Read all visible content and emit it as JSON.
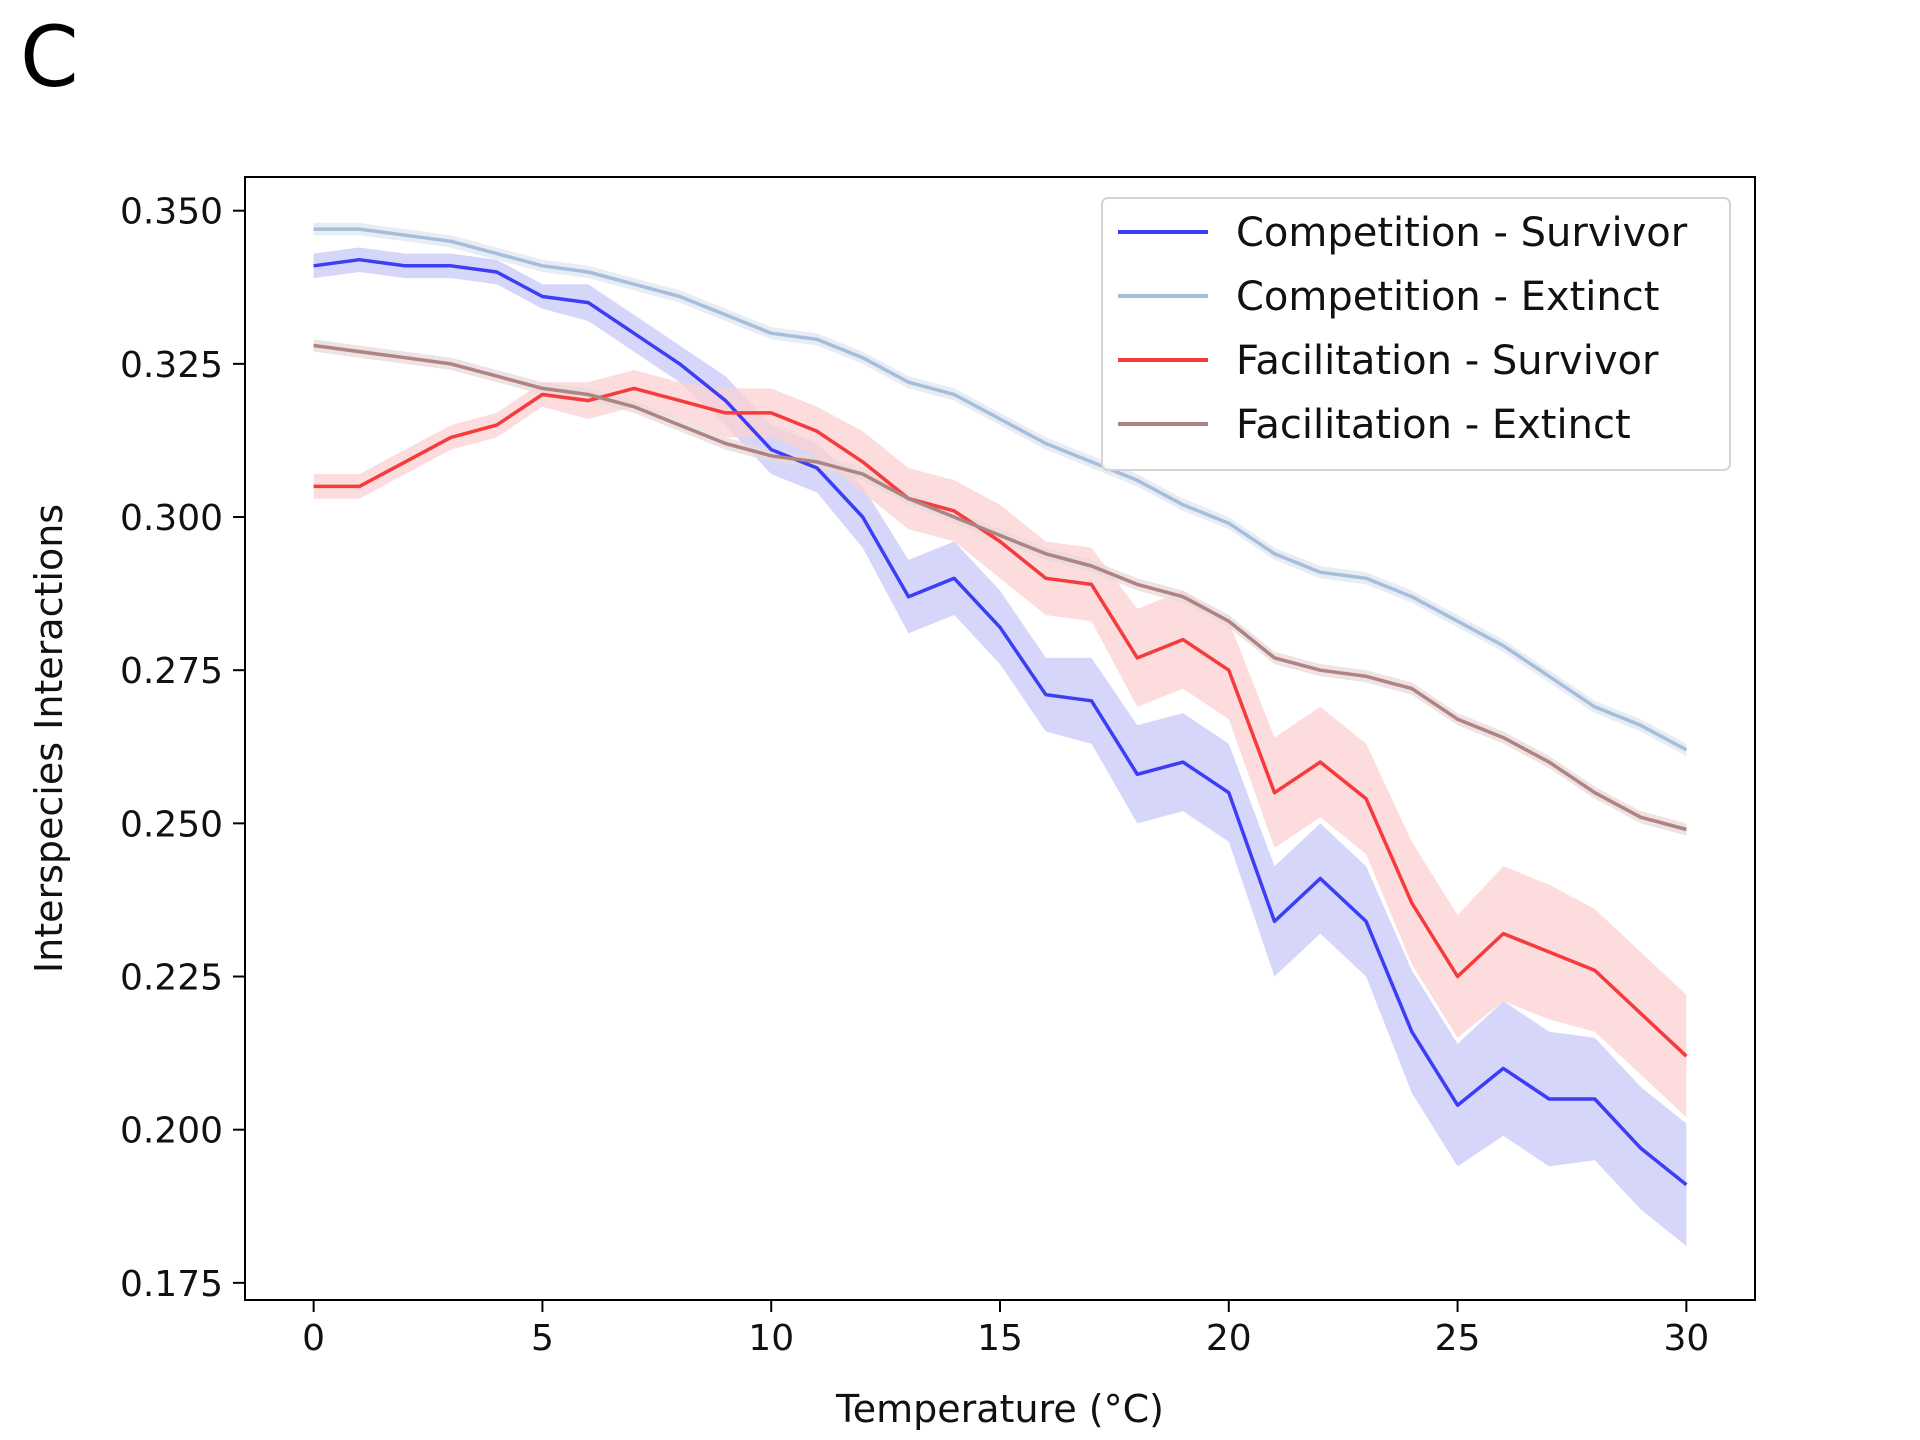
{
  "panel_label": "C",
  "chart_data": {
    "type": "line",
    "title": "",
    "xlabel": "Temperature (°C)",
    "ylabel": "Interspecies Interactions",
    "xlim": [
      -1.5,
      31.5
    ],
    "ylim": [
      0.1722,
      0.3555
    ],
    "xticks": [
      0,
      5,
      10,
      15,
      20,
      25,
      30
    ],
    "yticks": [
      0.175,
      0.2,
      0.225,
      0.25,
      0.275,
      0.3,
      0.325,
      0.35
    ],
    "ytick_labels": [
      "0.175",
      "0.200",
      "0.225",
      "0.250",
      "0.275",
      "0.300",
      "0.325",
      "0.350"
    ],
    "xtick_labels": [
      "0",
      "5",
      "10",
      "15",
      "20",
      "25",
      "30"
    ],
    "grid": false,
    "legend_position": "top-right",
    "x": [
      0,
      1,
      2,
      3,
      4,
      5,
      6,
      7,
      8,
      9,
      10,
      11,
      12,
      13,
      14,
      15,
      16,
      17,
      18,
      19,
      20,
      21,
      22,
      23,
      24,
      25,
      26,
      27,
      28,
      29,
      30
    ],
    "series": [
      {
        "name": "Competition - Survivor",
        "color": "#3d3df5",
        "band_color": "#c8c8f8",
        "values": [
          0.341,
          0.342,
          0.341,
          0.341,
          0.34,
          0.336,
          0.335,
          0.33,
          0.325,
          0.319,
          0.311,
          0.308,
          0.3,
          0.287,
          0.29,
          0.282,
          0.271,
          0.27,
          0.258,
          0.26,
          0.255,
          0.234,
          0.241,
          0.234,
          0.216,
          0.204,
          0.21,
          0.205,
          0.205,
          0.197,
          0.191
        ],
        "err": [
          0.002,
          0.002,
          0.002,
          0.002,
          0.002,
          0.002,
          0.003,
          0.003,
          0.003,
          0.004,
          0.004,
          0.004,
          0.005,
          0.006,
          0.006,
          0.006,
          0.006,
          0.007,
          0.008,
          0.008,
          0.008,
          0.009,
          0.009,
          0.009,
          0.01,
          0.01,
          0.011,
          0.011,
          0.01,
          0.01,
          0.01
        ]
      },
      {
        "name": "Competition - Extinct",
        "color": "#a7bedb",
        "band_color": "#dfe7f1",
        "values": [
          0.347,
          0.347,
          0.346,
          0.345,
          0.343,
          0.341,
          0.34,
          0.338,
          0.336,
          0.333,
          0.33,
          0.329,
          0.326,
          0.322,
          0.32,
          0.316,
          0.312,
          0.309,
          0.306,
          0.302,
          0.299,
          0.294,
          0.291,
          0.29,
          0.287,
          0.283,
          0.279,
          0.274,
          0.269,
          0.266,
          0.262
        ],
        "err": [
          0.001,
          0.001,
          0.001,
          0.001,
          0.001,
          0.001,
          0.001,
          0.001,
          0.001,
          0.001,
          0.001,
          0.001,
          0.001,
          0.001,
          0.001,
          0.001,
          0.001,
          0.001,
          0.001,
          0.001,
          0.001,
          0.001,
          0.001,
          0.001,
          0.001,
          0.001,
          0.001,
          0.001,
          0.001,
          0.001,
          0.001
        ]
      },
      {
        "name": "Facilitation - Survivor",
        "color": "#f53b3b",
        "band_color": "#fbd0d0",
        "values": [
          0.305,
          0.305,
          0.309,
          0.313,
          0.315,
          0.32,
          0.319,
          0.321,
          0.319,
          0.317,
          0.317,
          0.314,
          0.309,
          0.303,
          0.301,
          0.296,
          0.29,
          0.289,
          0.277,
          0.28,
          0.275,
          0.255,
          0.26,
          0.254,
          0.237,
          0.225,
          0.232,
          0.229,
          0.226,
          0.219,
          0.212
        ],
        "err": [
          0.002,
          0.002,
          0.002,
          0.002,
          0.002,
          0.002,
          0.003,
          0.003,
          0.003,
          0.004,
          0.004,
          0.004,
          0.005,
          0.005,
          0.005,
          0.006,
          0.006,
          0.006,
          0.008,
          0.008,
          0.008,
          0.009,
          0.009,
          0.009,
          0.01,
          0.01,
          0.011,
          0.011,
          0.01,
          0.01,
          0.01
        ]
      },
      {
        "name": "Facilitation - Extinct",
        "color": "#b08383",
        "band_color": "#e8d9d9",
        "values": [
          0.328,
          0.327,
          0.326,
          0.325,
          0.323,
          0.321,
          0.32,
          0.318,
          0.315,
          0.312,
          0.31,
          0.309,
          0.307,
          0.303,
          0.3,
          0.297,
          0.294,
          0.292,
          0.289,
          0.287,
          0.283,
          0.277,
          0.275,
          0.274,
          0.272,
          0.267,
          0.264,
          0.26,
          0.255,
          0.251,
          0.249
        ],
        "err": [
          0.001,
          0.001,
          0.001,
          0.001,
          0.001,
          0.001,
          0.001,
          0.001,
          0.001,
          0.001,
          0.001,
          0.001,
          0.001,
          0.001,
          0.001,
          0.001,
          0.001,
          0.001,
          0.001,
          0.001,
          0.001,
          0.001,
          0.001,
          0.001,
          0.001,
          0.001,
          0.001,
          0.001,
          0.001,
          0.001,
          0.001
        ]
      }
    ]
  }
}
